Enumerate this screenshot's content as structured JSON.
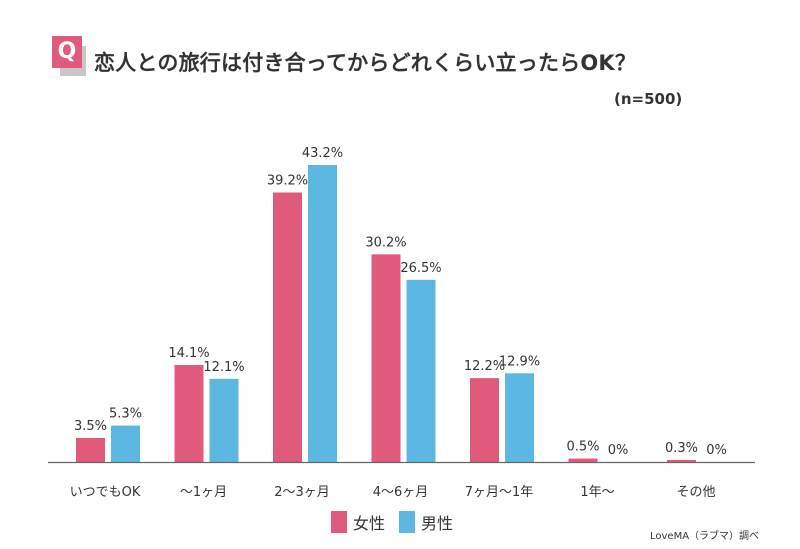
{
  "header": {
    "q_badge": "Q",
    "title": "恋人との旅行は付き合ってからどれくらい立ったらOK？",
    "sample": "(n=500)"
  },
  "credit": "LoveMA（ラブマ）調べ",
  "colors": {
    "female": "#e05a7c",
    "male": "#5cb8e2"
  },
  "chart_data": {
    "type": "bar",
    "title": "恋人との旅行は付き合ってからどれくらい立ったらOK？",
    "categories": [
      "いつでもOK",
      "〜1ヶ月",
      "2〜3ヶ月",
      "4〜6ヶ月",
      "7ヶ月〜1年",
      "1年〜",
      "その他"
    ],
    "series": [
      {
        "name": "女性",
        "color": "#e05a7c",
        "values": [
          3.5,
          14.1,
          39.2,
          30.2,
          12.2,
          0.5,
          0.3
        ],
        "labels": [
          "3.5%",
          "14.1%",
          "39.2%",
          "30.2%",
          "12.2%",
          "0.5%",
          "0.3%"
        ]
      },
      {
        "name": "男性",
        "color": "#5cb8e2",
        "values": [
          5.3,
          12.1,
          43.2,
          26.5,
          12.9,
          0,
          0
        ],
        "labels": [
          "5.3%",
          "12.1%",
          "43.2%",
          "26.5%",
          "12.9%",
          "0%",
          "0%"
        ]
      }
    ],
    "ylim": [
      0,
      45
    ],
    "grid": false,
    "legend": "bottom"
  }
}
